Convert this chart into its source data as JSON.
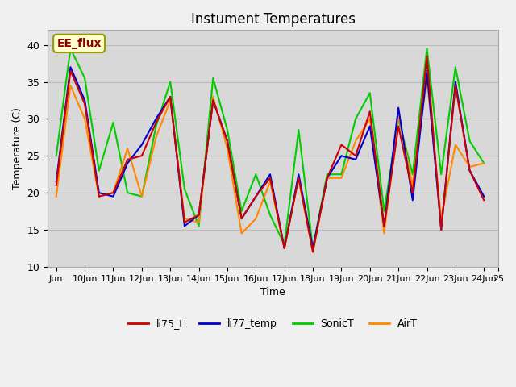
{
  "title": "Instument Temperatures",
  "xlabel": "Time",
  "ylabel": "Temperature (C)",
  "ylim": [
    10,
    42
  ],
  "xlim": [
    0,
    15
  ],
  "background_color": "#e8e8e8",
  "plot_bg_color": "#d8d8d8",
  "annotation_text": "EE_flux",
  "annotation_color": "#8b0000",
  "annotation_bg": "#ffffcc",
  "line_colors": {
    "li75_t": "#cc0000",
    "li77_temp": "#0000cc",
    "SonicT": "#00cc00",
    "AirT": "#ff8800"
  },
  "line_widths": {
    "li75_t": 1.5,
    "li77_temp": 1.5,
    "SonicT": 1.5,
    "AirT": 1.5
  },
  "xtick_labels": [
    "Jun",
    "10Jun",
    "11Jun",
    "12Jun",
    "13Jun",
    "14Jun",
    "15Jun",
    "16Jun",
    "17Jun",
    "18Jun",
    "19Jun",
    "20Jun",
    "21Jun",
    "22Jun",
    "23Jun",
    "24Jun",
    "25"
  ],
  "xtick_positions": [
    0,
    1,
    2,
    3,
    4,
    5,
    6,
    7,
    8,
    9,
    10,
    11,
    12,
    13,
    14,
    15,
    15.5
  ],
  "ytick_positions": [
    10,
    15,
    20,
    25,
    30,
    35,
    40
  ],
  "grid_color": "#bbbbbb",
  "time_points": [
    0.0,
    0.5,
    1.0,
    1.5,
    2.0,
    2.5,
    3.0,
    3.5,
    4.0,
    4.5,
    5.0,
    5.5,
    6.0,
    6.5,
    7.0,
    7.5,
    8.0,
    8.5,
    9.0,
    9.5,
    10.0,
    10.5,
    11.0,
    11.5,
    12.0,
    12.5,
    13.0,
    13.5,
    14.0,
    14.5,
    15.0
  ],
  "li75_t": [
    21.0,
    36.5,
    32.0,
    19.5,
    20.0,
    24.5,
    25.0,
    29.5,
    33.0,
    16.0,
    17.0,
    32.5,
    27.0,
    16.5,
    19.5,
    22.0,
    12.5,
    22.0,
    12.0,
    22.0,
    26.5,
    25.0,
    31.0,
    15.5,
    29.0,
    20.0,
    38.5,
    15.0,
    34.5,
    23.0,
    19.0
  ],
  "li77_temp": [
    21.5,
    37.0,
    32.5,
    20.0,
    19.5,
    24.0,
    26.5,
    30.0,
    33.0,
    15.5,
    17.0,
    32.5,
    27.0,
    16.5,
    19.5,
    22.5,
    12.5,
    22.5,
    12.5,
    22.0,
    25.0,
    24.5,
    29.0,
    15.5,
    31.5,
    19.0,
    36.5,
    15.0,
    35.0,
    23.0,
    19.5
  ],
  "SonicT": [
    25.0,
    39.5,
    35.5,
    23.0,
    29.5,
    20.0,
    19.5,
    29.0,
    35.0,
    20.5,
    15.5,
    35.5,
    28.5,
    17.5,
    22.5,
    17.0,
    13.0,
    28.5,
    12.5,
    22.5,
    22.5,
    30.0,
    33.5,
    17.5,
    30.0,
    22.5,
    39.5,
    22.5,
    37.0,
    27.0,
    24.0
  ],
  "AirT": [
    19.5,
    34.5,
    30.0,
    19.5,
    20.0,
    26.0,
    19.5,
    27.5,
    32.5,
    16.5,
    16.0,
    33.0,
    26.0,
    14.5,
    16.5,
    21.5,
    12.5,
    22.0,
    12.0,
    22.0,
    22.0,
    27.0,
    30.0,
    14.5,
    30.5,
    21.0,
    35.5,
    16.5,
    26.5,
    23.5,
    24.0
  ]
}
